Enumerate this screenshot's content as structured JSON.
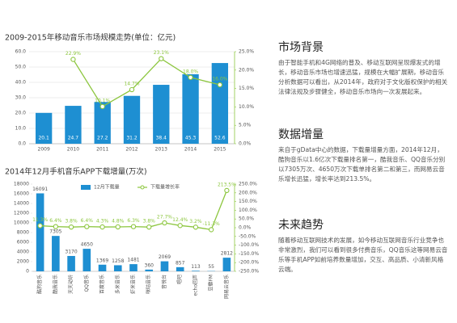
{
  "chart_data": [
    {
      "type": "bar_line",
      "title": "2009-2015年移动音乐市场规模走势(单位：亿元)",
      "categories": [
        "2009",
        "2010",
        "2011",
        "2012",
        "2013",
        "2014",
        "2015"
      ],
      "series": [
        {
          "color": "#1e8fd2",
          "values": [
            20.1,
            24.7,
            27.2,
            31.2,
            38.4,
            45.3,
            52.6
          ]
        },
        {
          "color": "#8cc63e",
          "axis": "y2",
          "values": [
            null,
            22.9,
            10.1,
            14.7,
            23.1,
            18.0,
            16.0
          ],
          "value_labels": [
            null,
            "22.9%",
            "10.1%",
            "14.7%",
            "23.1%",
            "18.0%",
            "16.0%"
          ]
        }
      ],
      "ylim": [
        0,
        60
      ],
      "yticks": [
        {
          "value": 0,
          "label": "0.0"
        },
        {
          "value": 10,
          "label": "10.0"
        },
        {
          "value": 20,
          "label": "20.0"
        },
        {
          "value": 30,
          "label": "30.0"
        },
        {
          "value": 40,
          "label": "40.0"
        },
        {
          "value": 50,
          "label": "50.0"
        },
        {
          "value": 60,
          "label": "60.0"
        }
      ],
      "y2lim": [
        0,
        25
      ],
      "y2ticks": [
        {
          "value": 0,
          "label": "0.0%"
        },
        {
          "value": 5,
          "label": "5.0%"
        },
        {
          "value": 10,
          "label": "10.0%"
        },
        {
          "value": 15,
          "label": "15.0%"
        },
        {
          "value": 20,
          "label": "20.0%"
        },
        {
          "value": 25,
          "label": "25.0%"
        }
      ],
      "grid": true
    },
    {
      "type": "bar_line",
      "title": "2014年12月手机音乐APP下载增量(万次)",
      "categories": [
        "酷狗音乐",
        "酷我音乐",
        "天天动听",
        "QQ音乐",
        "百度音乐",
        "多米音乐",
        "虾米音乐",
        "咪咕音乐",
        "音悦台",
        "唱吧",
        "echo回声",
        "豆瓣FM",
        "网易云音乐"
      ],
      "series": [
        {
          "name": "12月下载量",
          "color": "#1e8fd2",
          "values": [
            16091,
            7305,
            3170,
            4650,
            1369,
            1258,
            1481,
            360,
            2069,
            857,
            113,
            55,
            2812
          ]
        },
        {
          "name": "下载量增长率",
          "color": "#8cc63e",
          "axis": "y2",
          "values": [
            11.3,
            6.4,
            3.8,
            6.4,
            4.3,
            4.8,
            6.3,
            3.8,
            27.7,
            12.4,
            3.2,
            -11.3,
            213.5
          ],
          "value_labels": [
            "11.3%",
            "6.4%",
            "3.8%",
            "6.4%",
            "4.3%",
            "4.8%",
            "6.3%",
            "3.8%",
            "27.7%",
            "12.4%",
            "3.2%",
            "-11.3%",
            "213.5%"
          ]
        }
      ],
      "ylim": [
        0,
        18000
      ],
      "yticks": [
        0,
        2000,
        4000,
        6000,
        8000,
        10000,
        12000,
        14000,
        16000,
        18000
      ],
      "y2lim": [
        -250,
        250
      ],
      "y2ticks": [
        {
          "value": -250,
          "label": "-250.0%"
        },
        {
          "value": -200,
          "label": "-200.0%"
        },
        {
          "value": -150,
          "label": "-150.0%"
        },
        {
          "value": -100,
          "label": "-100.0%"
        },
        {
          "value": -50,
          "label": "-50.0%"
        },
        {
          "value": 0,
          "label": "0.0%"
        },
        {
          "value": 50,
          "label": "50.0%"
        },
        {
          "value": 100,
          "label": "100.0%"
        },
        {
          "value": 150,
          "label": "150.0%"
        },
        {
          "value": 200,
          "label": "200.0%"
        },
        {
          "value": 250,
          "label": "250.0%"
        }
      ],
      "grid": false
    }
  ],
  "sections": [
    {
      "heading": "市场背景",
      "body": "由于智能手机和4G网络的普及、移动互联网呈现爆发式的增长，移动音乐市场也增速迅猛，规模在大幅扩展期，移动音乐分析数据可以看出，从2014年，政府对于文化版权保护的相关法律法规及步骤健全，移动音乐市场向一次发展起来。"
    },
    {
      "heading": "数据增量",
      "body": "来自于gData中心的数据，下载量增量方面，2014年12月，酷狗音乐以1.6亿次下载量排名第一，酷我音乐、QQ音乐分别以7305万次、4650万次下载单排名第二和第三，而网易云音乐增长迅猛，增长率达到213.5%。"
    },
    {
      "heading": "未来趋势",
      "body": "随着移动互联网技术的发展，如今移动互联网音乐行业竞争也非常激烈，我们可以看到很多付费音乐，QQ音乐这等网易云音乐等手机APP如前培养数量增加，交互、高品质、小清新风格云端。"
    }
  ]
}
